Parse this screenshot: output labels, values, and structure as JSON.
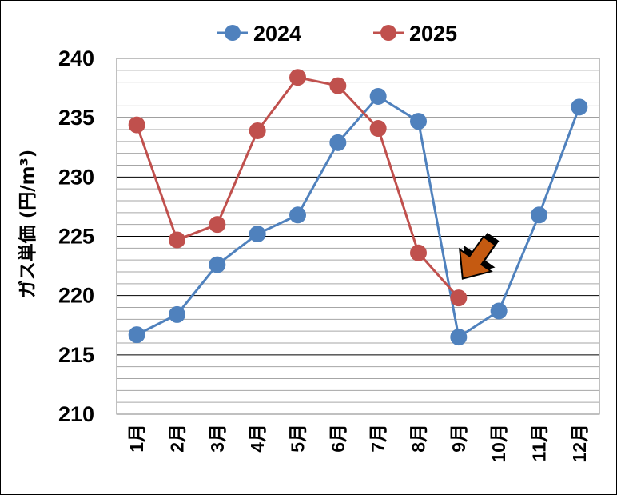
{
  "chart_data": {
    "type": "line",
    "title": "",
    "ylabel": "ガス単価 (円/m³)",
    "xlabel": "",
    "categories": [
      "1月",
      "2月",
      "3月",
      "4月",
      "5月",
      "6月",
      "7月",
      "8月",
      "9月",
      "10月",
      "11月",
      "12月"
    ],
    "ylim": [
      210,
      240
    ],
    "yticks": [
      210,
      215,
      220,
      225,
      230,
      235,
      240
    ],
    "major_gridline_step": 5,
    "minor_gridline_step": 1,
    "legend_position": "top",
    "series": [
      {
        "name": "2024",
        "color": "#4f81bd",
        "values": [
          216.7,
          218.4,
          222.6,
          225.2,
          226.8,
          232.9,
          236.8,
          234.7,
          216.5,
          218.7,
          226.8,
          235.9
        ]
      },
      {
        "name": "2025",
        "color": "#c0504d",
        "values": [
          234.4,
          224.7,
          226.0,
          233.9,
          238.4,
          237.7,
          234.1,
          223.6,
          219.8,
          null,
          null,
          null
        ]
      }
    ],
    "annotation": {
      "type": "arrow",
      "icon": "down-left-arrow-icon",
      "color": "#c55a11",
      "target_category": "9月",
      "target_series": "2025"
    }
  }
}
